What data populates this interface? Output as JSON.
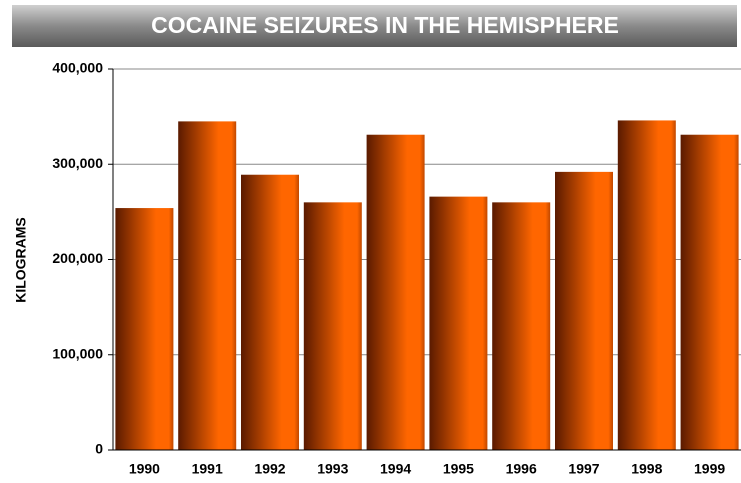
{
  "chart_data": {
    "type": "bar",
    "title": "COCAINE SEIZURES IN THE HEMISPHERE",
    "y_label": "KILOGRAMS",
    "categories": [
      "1990",
      "1991",
      "1992",
      "1993",
      "1994",
      "1995",
      "1996",
      "1997",
      "1998",
      "1999"
    ],
    "values": [
      254000,
      345000,
      289000,
      260000,
      331000,
      266000,
      260000,
      292000,
      346000,
      331000
    ],
    "color": "#ff6600",
    "ylim": [
      0,
      400000
    ],
    "yticks": [
      0,
      {
        "value": 100000,
        "label": "100,000"
      },
      {
        "value": 200000,
        "label": "200,000"
      },
      {
        "value": 300000,
        "label": "300,000"
      },
      {
        "value": 400000,
        "label": "400,000"
      }
    ],
    "grid": true
  }
}
